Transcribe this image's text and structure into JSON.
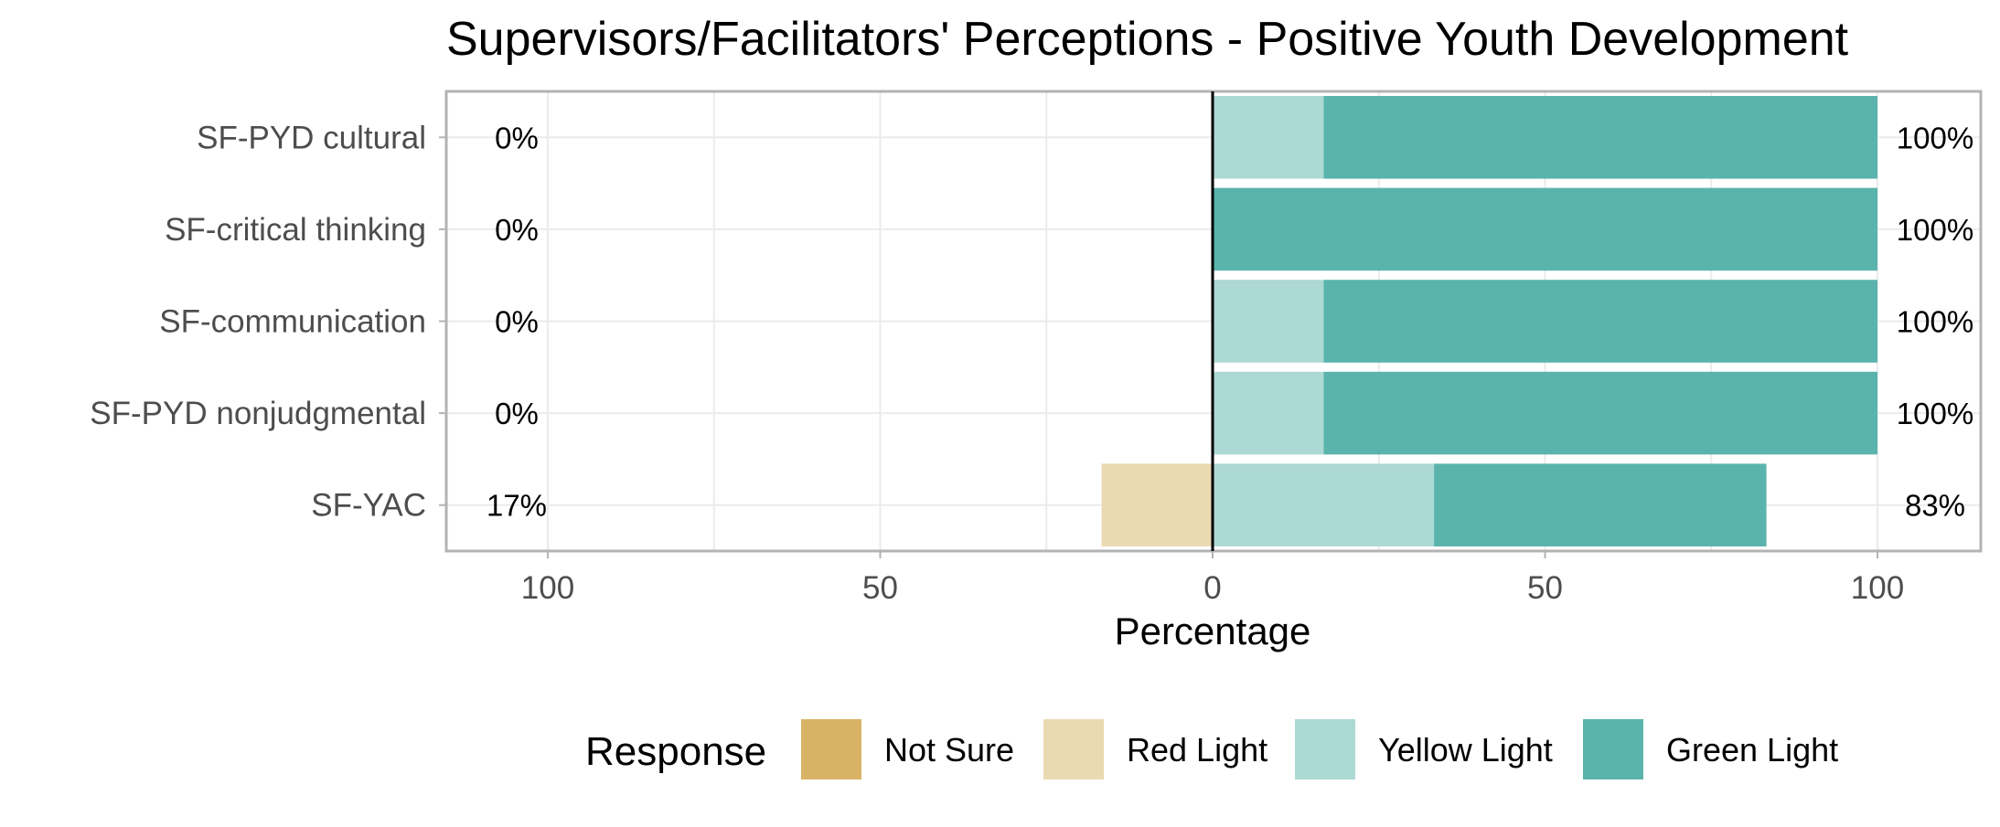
{
  "chart_data": {
    "type": "bar",
    "subtype": "diverging-stacked-horizontal",
    "title": "Supervisors/Facilitators' Perceptions - Positive Youth Development",
    "xlabel": "Percentage",
    "ylabel": "",
    "xlim": [
      -115,
      115
    ],
    "x_tick_values": [
      -100,
      -50,
      0,
      50,
      100
    ],
    "x_tick_labels": [
      "100",
      "50",
      "0",
      "50",
      "100"
    ],
    "categories": [
      "SF-PYD cultural",
      "SF-critical thinking",
      "SF-communication",
      "SF-PYD nonjudgmental",
      "SF-YAC"
    ],
    "series": [
      {
        "name": "Not Sure",
        "color": "#D8B365",
        "side": "negative",
        "values": [
          0,
          0,
          0,
          0,
          0
        ]
      },
      {
        "name": "Red Light",
        "color": "#EBD9B2",
        "side": "negative",
        "values": [
          0,
          0,
          0,
          0,
          16.7
        ]
      },
      {
        "name": "Yellow Light",
        "color": "#ADD9D5",
        "side": "positive",
        "values": [
          16.7,
          0,
          16.7,
          16.7,
          33.3
        ]
      },
      {
        "name": "Green Light",
        "color": "#5AB4AC",
        "side": "positive",
        "values": [
          83.3,
          100,
          83.3,
          83.3,
          50
        ]
      }
    ],
    "left_labels": [
      "0%",
      "0%",
      "0%",
      "0%",
      "17%"
    ],
    "right_labels": [
      "100%",
      "100%",
      "100%",
      "100%",
      "83%"
    ],
    "legend": {
      "title": "Response",
      "position": "bottom"
    },
    "grid": true
  }
}
